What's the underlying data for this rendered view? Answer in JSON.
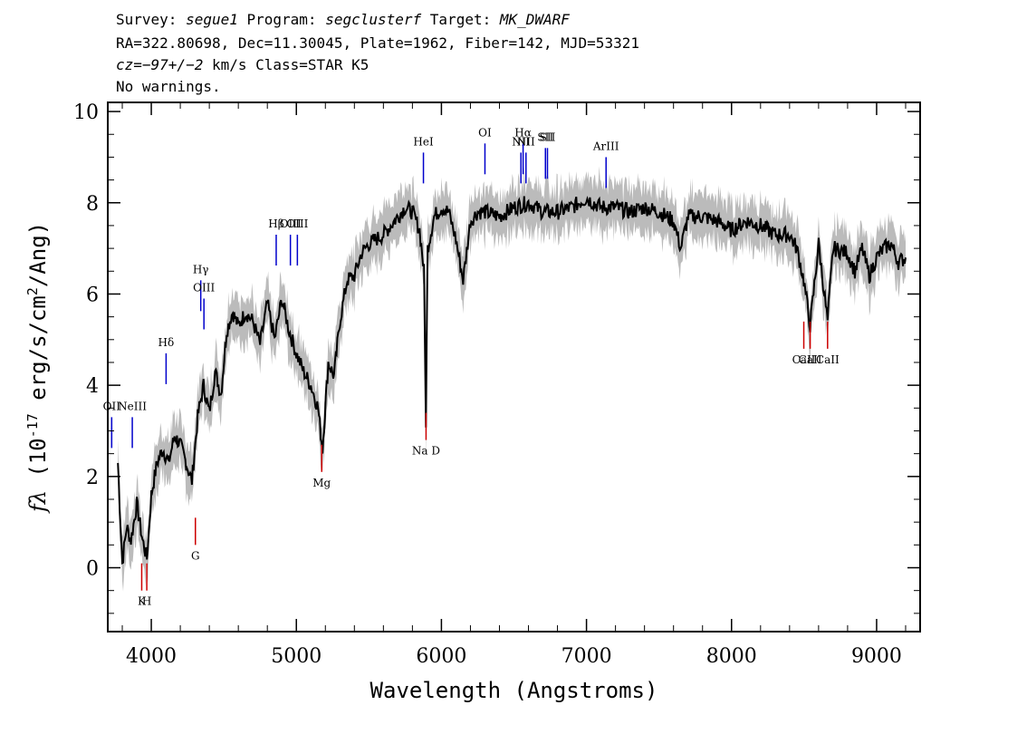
{
  "header": {
    "line1": {
      "survey_label": "Survey: ",
      "survey": "segue1",
      "program_label": " Program: ",
      "program": "segclusterf",
      "target_label": " Target: ",
      "target": "MK_DWARF"
    },
    "line2": "RA=322.80698, Dec=11.30045, Plate=1962, Fiber=142, MJD=53321",
    "line3": {
      "cz_label": "cz",
      "cz_value": "=−97+/−2",
      "rest": " km/s Class=STAR K5"
    },
    "line4": "No warnings."
  },
  "chart_data": {
    "type": "line",
    "xlabel": "Wavelength (Angstroms)",
    "ylabel": "f_λ (10^-17 erg/s/cm^2/Ang)",
    "xlim": [
      3700,
      9300
    ],
    "ylim": [
      -1.4,
      10.2
    ],
    "x_ticks": [
      4000,
      5000,
      6000,
      7000,
      8000,
      9000
    ],
    "y_ticks": [
      0,
      2,
      4,
      6,
      8,
      10
    ],
    "series": [
      {
        "role": "flux",
        "color": "#000000",
        "x": [
          3770,
          3800,
          3830,
          3860,
          3900,
          3940,
          3970,
          4000,
          4040,
          4080,
          4120,
          4160,
          4200,
          4240,
          4280,
          4320,
          4360,
          4400,
          4440,
          4480,
          4520,
          4560,
          4600,
          4650,
          4700,
          4750,
          4800,
          4850,
          4900,
          4950,
          5000,
          5050,
          5100,
          5150,
          5180,
          5220,
          5260,
          5300,
          5350,
          5400,
          5450,
          5500,
          5550,
          5600,
          5650,
          5700,
          5750,
          5800,
          5850,
          5880,
          5893,
          5905,
          5950,
          6000,
          6050,
          6100,
          6150,
          6200,
          6250,
          6300,
          6400,
          6500,
          6600,
          6700,
          6800,
          6900,
          7000,
          7100,
          7200,
          7300,
          7400,
          7500,
          7600,
          7650,
          7700,
          7800,
          7900,
          8000,
          8100,
          8200,
          8300,
          8400,
          8450,
          8498,
          8542,
          8600,
          8662,
          8700,
          8800,
          8850,
          8900,
          8950,
          9000,
          9050,
          9100,
          9150,
          9200
        ],
        "y": [
          2.3,
          0.1,
          0.9,
          0.6,
          1.4,
          0.6,
          0.2,
          1.6,
          2.3,
          2.6,
          2.3,
          2.9,
          2.7,
          2.3,
          1.9,
          3.3,
          4.0,
          3.4,
          4.3,
          3.8,
          5.2,
          5.6,
          5.3,
          5.6,
          5.4,
          4.9,
          5.8,
          5.0,
          5.9,
          5.2,
          4.7,
          4.3,
          4.0,
          3.5,
          2.6,
          4.5,
          4.2,
          5.4,
          6.3,
          6.4,
          6.9,
          7.1,
          7.2,
          7.3,
          7.5,
          7.7,
          7.9,
          7.8,
          7.4,
          6.5,
          3.2,
          7.0,
          7.7,
          7.9,
          7.8,
          7.2,
          6.3,
          7.6,
          7.8,
          7.8,
          7.7,
          7.9,
          8.0,
          7.8,
          7.8,
          7.9,
          8.1,
          7.9,
          7.9,
          7.8,
          7.9,
          7.8,
          7.6,
          7.0,
          7.7,
          7.7,
          7.6,
          7.4,
          7.6,
          7.5,
          7.3,
          7.3,
          7.0,
          6.3,
          5.3,
          7.1,
          5.4,
          7.0,
          6.9,
          6.5,
          7.0,
          6.4,
          6.8,
          7.0,
          7.1,
          6.7,
          6.8
        ]
      },
      {
        "role": "noise envelope",
        "color": "#bbbbbb",
        "upper": 0.45,
        "lower": 0.45
      }
    ],
    "emission_lines": [
      {
        "label": "OII",
        "x": 3727,
        "y": 3.3
      },
      {
        "label": "NeIII",
        "x": 3869,
        "y": 3.3
      },
      {
        "label": "Hδ",
        "x": 4102,
        "y": 4.7
      },
      {
        "label": "Hγ",
        "x": 4341,
        "y": 6.3
      },
      {
        "label": "OIII",
        "x": 4363,
        "y": 5.9
      },
      {
        "label": "Hβ",
        "x": 4861,
        "y": 7.3
      },
      {
        "label": "OIII",
        "x": 4959,
        "y": 7.3
      },
      {
        "label": "OIII",
        "x": 5007,
        "y": 7.3
      },
      {
        "label": "HeI",
        "x": 5876,
        "y": 9.1
      },
      {
        "label": "OI",
        "x": 6300,
        "y": 9.3
      },
      {
        "label": "NII",
        "x": 6548,
        "y": 9.1
      },
      {
        "label": "Hα",
        "x": 6563,
        "y": 9.3
      },
      {
        "label": "NII",
        "x": 6583,
        "y": 9.1
      },
      {
        "label": "SII",
        "x": 6717,
        "y": 9.2
      },
      {
        "label": "SII",
        "x": 6731,
        "y": 9.2
      },
      {
        "label": "ArIII",
        "x": 7135,
        "y": 9.0
      }
    ],
    "absorption_lines": [
      {
        "label": "K",
        "x": 3934,
        "y": -0.5
      },
      {
        "label": "H",
        "x": 3969,
        "y": -0.5
      },
      {
        "label": "G",
        "x": 4304,
        "y": 0.5
      },
      {
        "label": "Mg",
        "x": 5175,
        "y": 2.1
      },
      {
        "label": "Na D",
        "x": 5894,
        "y": 2.8
      },
      {
        "label": "CaII",
        "x": 8498,
        "y": 4.8
      },
      {
        "label": "CaII",
        "x": 8542,
        "y": 4.8
      },
      {
        "label": "CaII",
        "x": 8662,
        "y": 4.8
      }
    ],
    "colors": {
      "flux": "#000000",
      "error": "#bbbbbb",
      "emission": "#0000cc",
      "absorption": "#cc0000"
    }
  }
}
